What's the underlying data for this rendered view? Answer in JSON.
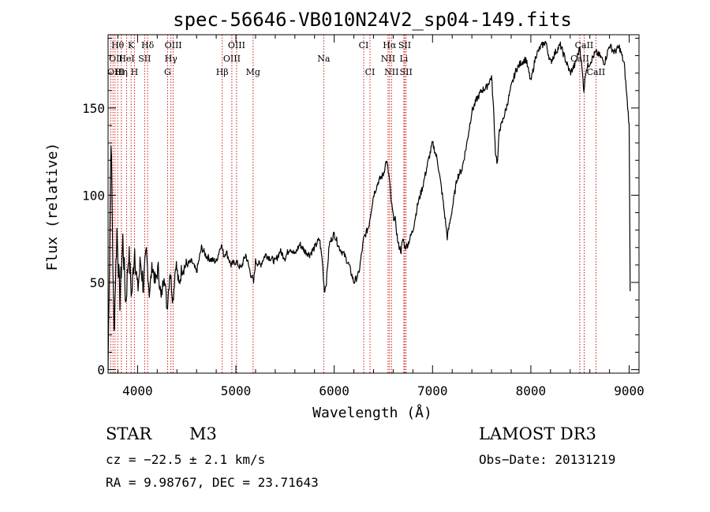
{
  "chart_data": {
    "type": "line",
    "title": "spec-56646-VB010N24V2_sp04-149.fits",
    "xlabel": "Wavelength (Å)",
    "ylabel": "Flux (relative)",
    "xlim": [
      3700,
      9100
    ],
    "ylim": [
      -2,
      192
    ],
    "xticks": [
      4000,
      5000,
      6000,
      7000,
      8000,
      9000
    ],
    "yticks": [
      0,
      50,
      100,
      150
    ],
    "xtick_labels": [
      "4000",
      "5000",
      "6000",
      "7000",
      "8000",
      "9000"
    ],
    "ytick_labels": [
      "0",
      "50",
      "100",
      "150"
    ],
    "series": [
      {
        "name": "flux",
        "x": [
          3700,
          3730,
          3760,
          3790,
          3820,
          3850,
          3880,
          3910,
          3940,
          3970,
          4000,
          4030,
          4060,
          4090,
          4120,
          4150,
          4180,
          4210,
          4240,
          4270,
          4300,
          4330,
          4360,
          4390,
          4420,
          4450,
          4500,
          4550,
          4600,
          4650,
          4700,
          4750,
          4800,
          4850,
          4880,
          4900,
          4950,
          5000,
          5050,
          5100,
          5150,
          5180,
          5200,
          5250,
          5300,
          5350,
          5400,
          5450,
          5500,
          5550,
          5600,
          5650,
          5700,
          5750,
          5800,
          5850,
          5880,
          5900,
          5920,
          5950,
          6000,
          6050,
          6100,
          6150,
          6200,
          6250,
          6300,
          6350,
          6400,
          6450,
          6500,
          6530,
          6560,
          6580,
          6600,
          6620,
          6650,
          6680,
          6700,
          6720,
          6750,
          6800,
          6850,
          6900,
          6950,
          7000,
          7050,
          7100,
          7150,
          7200,
          7250,
          7300,
          7350,
          7400,
          7450,
          7500,
          7550,
          7600,
          7620,
          7640,
          7660,
          7680,
          7700,
          7750,
          7800,
          7850,
          7900,
          7950,
          8000,
          8050,
          8100,
          8150,
          8200,
          8250,
          8300,
          8350,
          8400,
          8450,
          8500,
          8540,
          8560,
          8580,
          8620,
          8660,
          8700,
          8750,
          8800,
          8850,
          8900,
          8950,
          9000,
          9010
        ],
        "values": [
          0,
          135,
          20,
          80,
          40,
          75,
          38,
          68,
          42,
          70,
          45,
          62,
          48,
          66,
          44,
          60,
          50,
          58,
          40,
          56,
          35,
          57,
          40,
          62,
          48,
          58,
          60,
          62,
          56,
          70,
          65,
          63,
          62,
          72,
          65,
          68,
          60,
          62,
          58,
          66,
          55,
          50,
          62,
          60,
          66,
          64,
          62,
          68,
          64,
          70,
          66,
          72,
          68,
          66,
          70,
          75,
          62,
          45,
          50,
          72,
          78,
          70,
          66,
          60,
          50,
          55,
          75,
          82,
          100,
          108,
          112,
          120,
          110,
          96,
          88,
          86,
          72,
          68,
          75,
          70,
          72,
          80,
          95,
          105,
          118,
          130,
          120,
          100,
          76,
          92,
          110,
          115,
          130,
          148,
          155,
          160,
          162,
          168,
          150,
          125,
          118,
          138,
          140,
          150,
          162,
          172,
          176,
          178,
          165,
          180,
          185,
          188,
          176,
          182,
          186,
          178,
          170,
          175,
          185,
          160,
          172,
          174,
          178,
          182,
          180,
          176,
          186,
          182,
          185,
          175,
          140,
          45
        ],
        "color": "#000000"
      }
    ],
    "annotations": [
      {
        "label": "Hθ",
        "x": 3798,
        "row": 1
      },
      {
        "label": "K",
        "x": 3934,
        "row": 1
      },
      {
        "label": "Hδ",
        "x": 4102,
        "row": 1
      },
      {
        "label": "OIII",
        "x": 4363,
        "row": 1
      },
      {
        "label": "OIII",
        "x": 5007,
        "row": 1
      },
      {
        "label": "CI",
        "x": 6300,
        "row": 1
      },
      {
        "label": "Hα",
        "x": 6563,
        "row": 1
      },
      {
        "label": "SII",
        "x": 6717,
        "row": 1
      },
      {
        "label": "CaII",
        "x": 8542,
        "row": 1
      },
      {
        "label": "OII",
        "x": 3727,
        "row": 2
      },
      {
        "label": "HeI",
        "x": 3889,
        "row": 2
      },
      {
        "label": "SII",
        "x": 4072,
        "row": 2
      },
      {
        "label": "Hγ",
        "x": 4340,
        "row": 2
      },
      {
        "label": "OIII",
        "x": 4959,
        "row": 2
      },
      {
        "label": "Na",
        "x": 5893,
        "row": 2
      },
      {
        "label": "NII",
        "x": 6548,
        "row": 2
      },
      {
        "label": "Li",
        "x": 6708,
        "row": 2
      },
      {
        "label": "CaII",
        "x": 8498,
        "row": 2
      },
      {
        "label": "OIII",
        "x": 3727,
        "row": 3
      },
      {
        "label": "Hη",
        "x": 3835,
        "row": 3
      },
      {
        "label": "H",
        "x": 3968,
        "row": 3
      },
      {
        "label": "G",
        "x": 4305,
        "row": 3
      },
      {
        "label": "Hβ",
        "x": 4861,
        "row": 3
      },
      {
        "label": "Mg",
        "x": 5175,
        "row": 3
      },
      {
        "label": "CI",
        "x": 6364,
        "row": 3
      },
      {
        "label": "NII",
        "x": 6583,
        "row": 3
      },
      {
        "label": "SII",
        "x": 6731,
        "row": 3
      },
      {
        "label": "CaII",
        "x": 8662,
        "row": 3
      }
    ],
    "line_markers": [
      3727,
      3750,
      3771,
      3798,
      3835,
      3889,
      3934,
      3968,
      4072,
      4102,
      4305,
      4340,
      4363,
      4861,
      4959,
      5007,
      5175,
      5893,
      6300,
      6364,
      6548,
      6563,
      6583,
      6708,
      6717,
      6731,
      8498,
      8542,
      8662
    ],
    "marker_color": "#cc0000"
  },
  "info": {
    "object_type": "STAR",
    "subclass": "M3",
    "survey": "LAMOST DR3",
    "cz": "cz = −22.5 ± 2.1 km/s",
    "obs_date": "Obs−Date: 20131219",
    "radec": "RA =   9.98767, DEC =  23.71643"
  }
}
